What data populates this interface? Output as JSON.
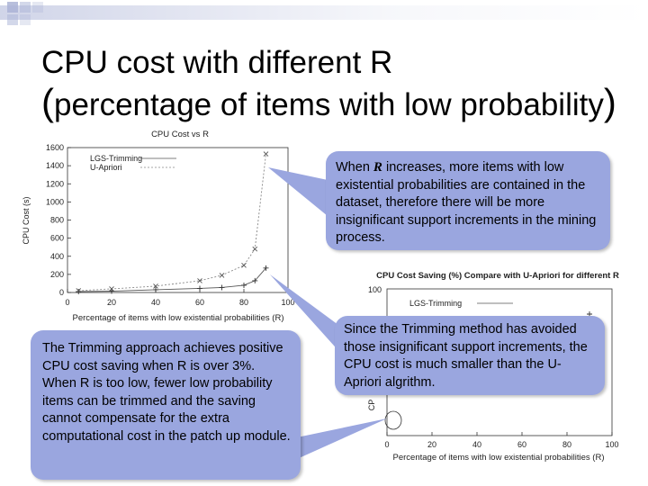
{
  "slide": {
    "title_line1": "CPU cost with different R",
    "title_line2_open": "(",
    "title_line2_text": "percentage of items with low probability",
    "title_line2_close": ")"
  },
  "callouts": {
    "top_right_before": "When ",
    "top_right_var": "R",
    "top_right_after": " increases, more items with low existential probabilities are contained in the dataset, therefore there will be more insignificant support increments in the mining process.",
    "middle_right": "Since the Trimming method has avoided those insignificant support increments, the CPU cost is much smaller than the U-Apriori algrithm.",
    "bottom_left_p1": "The Trimming approach achieves positive CPU cost saving when R is over 3%.",
    "bottom_left_p2": "When R is too low, fewer low probability items can be trimmed and the saving cannot compensate for the extra computational cost in the patch up module."
  },
  "colors": {
    "callout_fill": "#9aa6df",
    "deco_square": "#b8bfdc"
  },
  "chart_data": [
    {
      "type": "line",
      "title": "CPU Cost vs R",
      "xlabel": "Percentage of items with low existential probabilities (R)",
      "ylabel": "CPU Cost (s)",
      "xlim": [
        0,
        100
      ],
      "ylim": [
        0,
        1600
      ],
      "x_ticks": [
        "0",
        "20",
        "40",
        "60",
        "80",
        "100"
      ],
      "y_ticks": [
        "0",
        "200",
        "400",
        "600",
        "800",
        "1000",
        "1200",
        "1400",
        "1600"
      ],
      "legend_position": "top-left",
      "series": [
        {
          "name": "LGS-Trimming",
          "marker": "+",
          "points": [
            [
              5,
              10
            ],
            [
              20,
              15
            ],
            [
              40,
              30
            ],
            [
              60,
              45
            ],
            [
              70,
              55
            ],
            [
              80,
              80
            ],
            [
              85,
              130
            ],
            [
              90,
              270
            ]
          ]
        },
        {
          "name": "U-Apriori",
          "marker": "x",
          "points": [
            [
              5,
              20
            ],
            [
              20,
              40
            ],
            [
              40,
              70
            ],
            [
              60,
              130
            ],
            [
              70,
              190
            ],
            [
              80,
              300
            ],
            [
              85,
              480
            ],
            [
              90,
              1530
            ]
          ]
        }
      ]
    },
    {
      "type": "line",
      "title": "CPU Cost Saving (%) Compare with U-Apriori for different R",
      "xlabel": "Percentage of items with low existential probabilities (R)",
      "ylabel": "CP",
      "xlim": [
        0,
        100
      ],
      "x_ticks": [
        "0",
        "20",
        "40",
        "60",
        "80",
        "100"
      ],
      "y_ticks": [
        "100"
      ],
      "legend_position": "top-left",
      "series": [
        {
          "name": "LGS-Trimming",
          "marker": "+",
          "points": [
            [
              90,
              82
            ]
          ]
        }
      ]
    }
  ]
}
